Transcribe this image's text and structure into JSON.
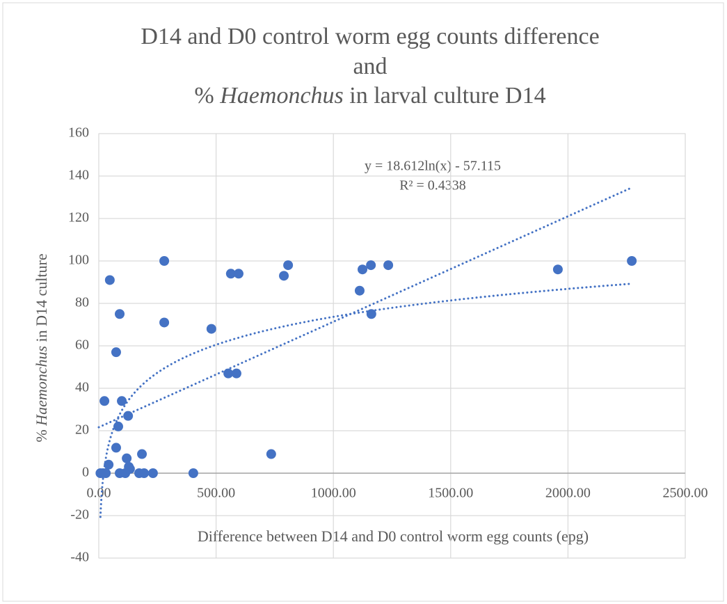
{
  "chart_data": {
    "type": "scatter",
    "title_lines": [
      "D14 and D0 control worm egg counts difference",
      "and"
    ],
    "title_parts": [
      "% ",
      "Haemonchus",
      " in larval culture D14"
    ],
    "y_label_parts": [
      "% ",
      "Haemonchus",
      " in D14 culture"
    ],
    "x_label": "Difference between D14 and D0 control worm egg counts (epg)",
    "annotations": [
      "y = 18.612ln(x) - 57.115",
      "R² = 0.4338"
    ],
    "color": "#4472c4",
    "grid": true,
    "trendlines": [
      "log",
      "linear"
    ],
    "x": [
      7,
      18,
      30,
      24,
      42,
      47,
      74,
      74,
      83,
      89,
      98,
      89,
      113,
      119,
      125,
      128,
      133,
      184,
      172,
      193,
      231,
      279,
      279,
      403,
      480,
      552,
      563,
      587,
      596,
      735,
      789,
      807,
      1112,
      1124,
      1162,
      1160,
      1234,
      1957,
      2272
    ],
    "values": [
      0,
      0,
      0,
      34,
      4,
      91,
      57,
      12,
      22,
      75,
      34,
      0,
      0,
      7,
      27,
      3,
      2,
      9,
      0,
      0,
      0,
      100,
      71,
      0,
      68,
      47,
      94,
      47,
      94,
      9,
      93,
      98,
      86,
      96,
      75,
      98,
      98,
      96,
      100
    ],
    "xlim": [
      0,
      2500
    ],
    "xticks": [
      {
        "value": 0,
        "label": "0.00"
      },
      {
        "value": 500,
        "label": "500.00"
      },
      {
        "value": 1000,
        "label": "1000.00"
      },
      {
        "value": 1500,
        "label": "1500.00"
      },
      {
        "value": 2000,
        "label": "2000.00"
      },
      {
        "value": 2500,
        "label": "2500.00"
      }
    ],
    "ylim": [
      -40,
      160
    ],
    "yticks": [
      -40,
      -20,
      0,
      20,
      40,
      60,
      80,
      100,
      120,
      140,
      160
    ]
  }
}
